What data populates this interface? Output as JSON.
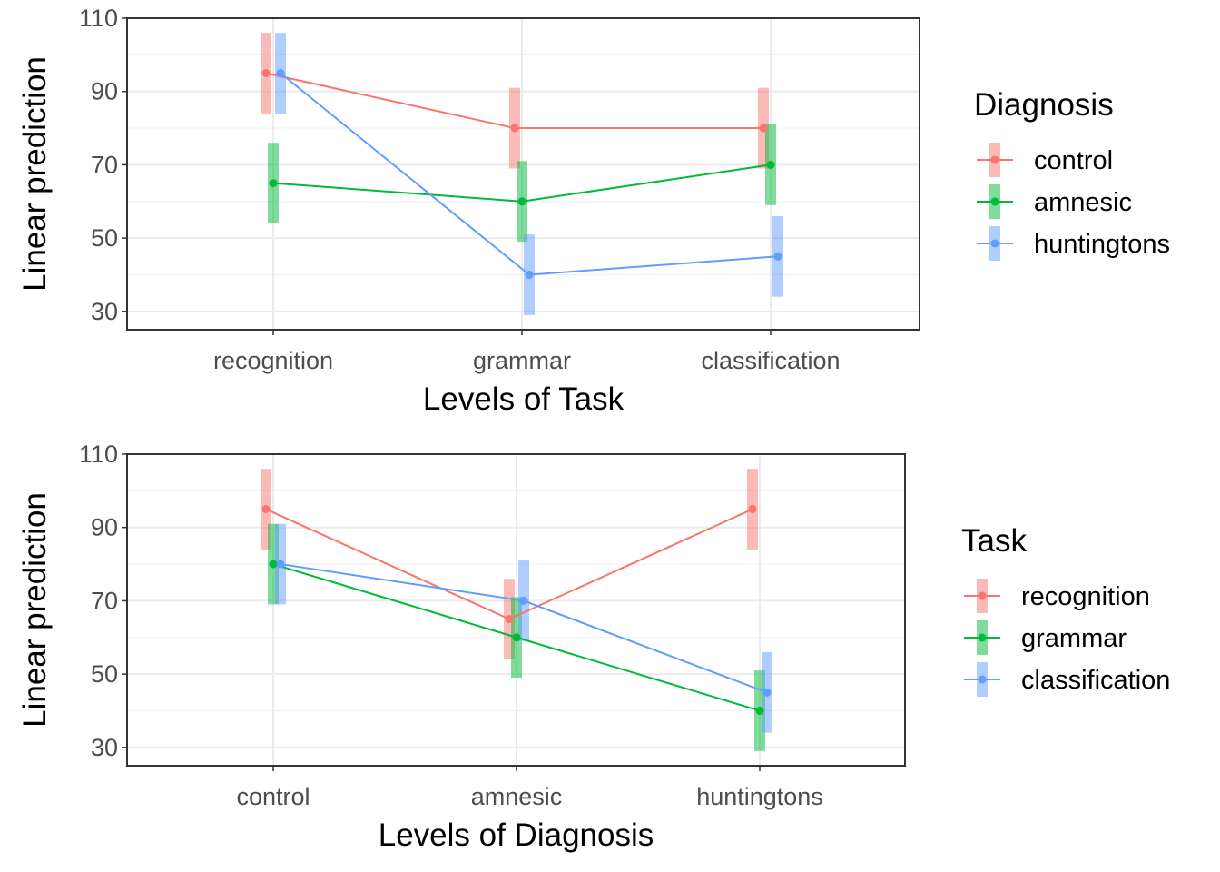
{
  "chart_data": [
    {
      "type": "line",
      "xlabel": "Levels of Task",
      "ylabel": "Linear prediction",
      "categories": [
        "recognition",
        "grammar",
        "classification"
      ],
      "ylim": [
        25,
        110
      ],
      "yticks": [
        30,
        50,
        70,
        90,
        110
      ],
      "grid": true,
      "error_bars": true,
      "legend": {
        "title": "Diagnosis",
        "position": "right"
      },
      "series": [
        {
          "name": "control",
          "color": "#F8766D",
          "values": [
            95,
            80,
            80
          ],
          "lower": [
            84,
            69,
            69
          ],
          "upper": [
            106,
            91,
            91
          ]
        },
        {
          "name": "amnesic",
          "color": "#00BA38",
          "values": [
            65,
            60,
            70
          ],
          "lower": [
            54,
            49,
            59
          ],
          "upper": [
            76,
            71,
            81
          ]
        },
        {
          "name": "huntingtons",
          "color": "#619CFF",
          "values": [
            95,
            40,
            45
          ],
          "lower": [
            84,
            29,
            34
          ],
          "upper": [
            106,
            51,
            56
          ]
        }
      ]
    },
    {
      "type": "line",
      "xlabel": "Levels of Diagnosis",
      "ylabel": "Linear prediction",
      "categories": [
        "control",
        "amnesic",
        "huntingtons"
      ],
      "ylim": [
        25,
        110
      ],
      "yticks": [
        30,
        50,
        70,
        90,
        110
      ],
      "grid": true,
      "error_bars": true,
      "legend": {
        "title": "Task",
        "position": "right"
      },
      "series": [
        {
          "name": "recognition",
          "color": "#F8766D",
          "values": [
            95,
            65,
            95
          ],
          "lower": [
            84,
            54,
            84
          ],
          "upper": [
            106,
            76,
            106
          ]
        },
        {
          "name": "grammar",
          "color": "#00BA38",
          "values": [
            80,
            60,
            40
          ],
          "lower": [
            69,
            49,
            29
          ],
          "upper": [
            91,
            71,
            51
          ]
        },
        {
          "name": "classification",
          "color": "#619CFF",
          "values": [
            80,
            70,
            45
          ],
          "lower": [
            69,
            59,
            34
          ],
          "upper": [
            91,
            81,
            56
          ]
        }
      ]
    }
  ]
}
